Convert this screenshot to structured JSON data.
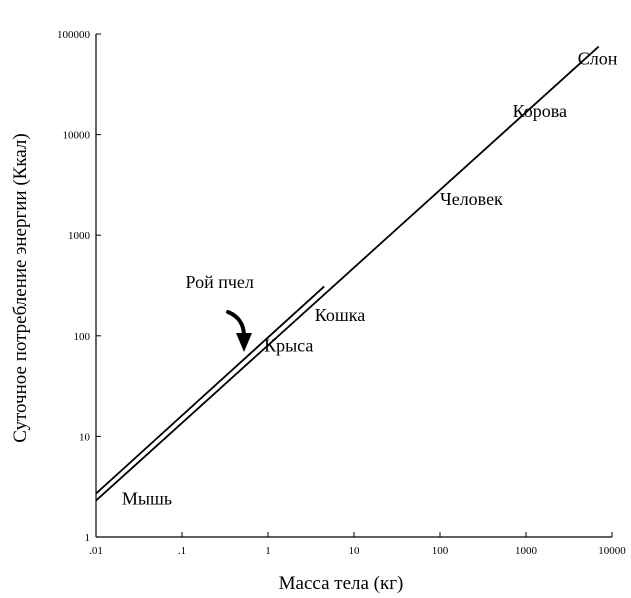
{
  "chart_data": {
    "type": "line",
    "title": "",
    "xlabel": "Масса тела (кг)",
    "ylabel": "Суточное потребление энергии (Ккал)",
    "xscale": "log",
    "yscale": "log",
    "xlim": [
      0.01,
      10000
    ],
    "ylim": [
      1,
      100000
    ],
    "xticks": [
      ".01",
      ".1",
      "1",
      "10",
      "100",
      "1000",
      "10000"
    ],
    "yticks": [
      "1",
      "10",
      "100",
      "1000",
      "10000",
      "100000"
    ],
    "grid": false,
    "series": [
      {
        "x": [
          0.01,
          7000
        ],
        "y": [
          2.3,
          75000
        ]
      },
      {
        "x": [
          0.01,
          4.5
        ],
        "y": [
          2.7,
          310
        ]
      }
    ],
    "annotations": [
      {
        "label": "Мышь",
        "x": 0.02,
        "y": 2.1
      },
      {
        "label": "Крыса",
        "x": 0.9,
        "y": 70
      },
      {
        "label": "Кошка",
        "x": 3.5,
        "y": 140
      },
      {
        "label": "Рой пчел",
        "x": 0.11,
        "y": 300
      },
      {
        "label": "Человек",
        "x": 100,
        "y": 2000
      },
      {
        "label": "Корова",
        "x": 700,
        "y": 15000
      },
      {
        "label": "Слон",
        "x": 4000,
        "y": 50000
      }
    ],
    "colors": {
      "line": "#000000",
      "text": "#000000"
    }
  }
}
